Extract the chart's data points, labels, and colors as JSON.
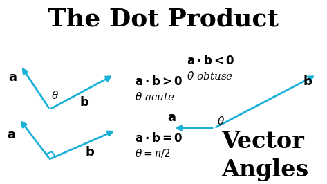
{
  "title": "The Dot Product",
  "title_fontsize": 26,
  "bg_color": "#ffffff",
  "arrow_color": "#1ab0d8",
  "text_color": "#000000",
  "lw": 2.0
}
